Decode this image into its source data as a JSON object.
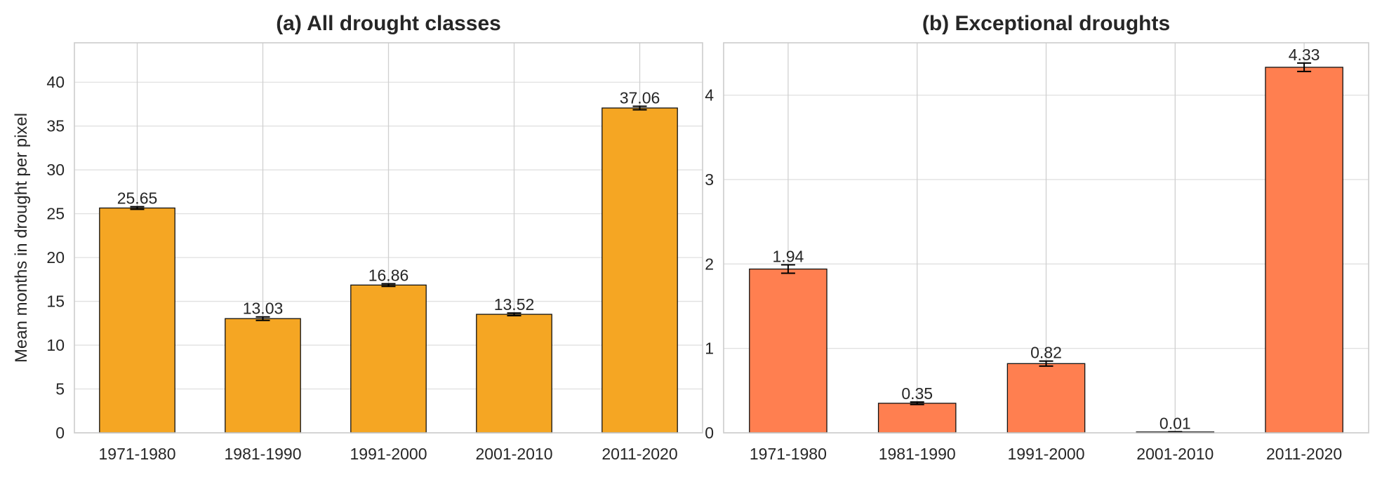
{
  "chart_data": [
    {
      "type": "bar",
      "title": "(a) All drought classes",
      "xlabel": "",
      "ylabel": "Mean months in drought per pixel",
      "categories": [
        "1971-1980",
        "1981-1990",
        "1991-2000",
        "2001-2010",
        "2011-2020"
      ],
      "values": [
        25.65,
        13.03,
        16.86,
        13.52,
        37.06
      ],
      "value_labels": [
        "25.65",
        "13.03",
        "16.86",
        "13.52",
        "37.06"
      ],
      "error": [
        0.15,
        0.2,
        0.15,
        0.15,
        0.2
      ],
      "ylim": [
        0,
        44.5
      ],
      "yticks": [
        0,
        5,
        10,
        15,
        20,
        25,
        30,
        35,
        40
      ],
      "grid": true,
      "bar_color": "#F5A623"
    },
    {
      "type": "bar",
      "title": "(b) Exceptional droughts",
      "xlabel": "",
      "ylabel": "",
      "categories": [
        "1971-1980",
        "1981-1990",
        "1991-2000",
        "2001-2010",
        "2011-2020"
      ],
      "values": [
        1.94,
        0.35,
        0.82,
        0.01,
        4.33
      ],
      "value_labels": [
        "1.94",
        "0.35",
        "0.82",
        "0.01",
        "4.33"
      ],
      "error": [
        0.05,
        0.015,
        0.03,
        0.002,
        0.05
      ],
      "ylim": [
        0,
        4.62
      ],
      "yticks": [
        0,
        1,
        2,
        3,
        4
      ],
      "grid": true,
      "bar_color": "#FF7F50"
    }
  ]
}
